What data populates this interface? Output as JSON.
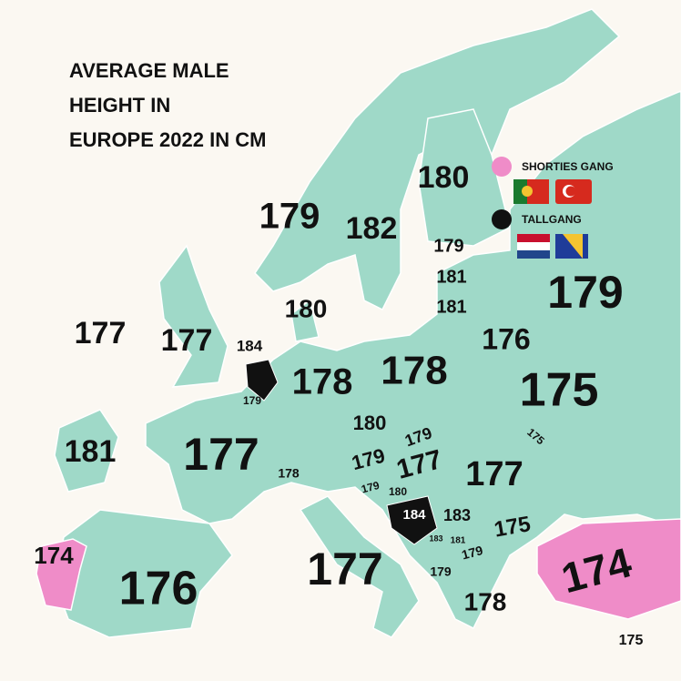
{
  "header": {
    "title_lines": [
      "AVERAGE MALE",
      "HEIGHT IN",
      "EUROPE 2022 IN CM"
    ]
  },
  "legend": [
    {
      "label": "SHORTIES GANG"
    },
    {
      "label": "TALLGANG"
    }
  ],
  "labels": [
    180,
    179,
    182,
    179,
    181,
    181,
    179,
    180,
    177,
    177,
    184,
    176,
    178,
    178,
    175,
    179,
    180,
    179,
    175,
    181,
    177,
    179,
    177,
    177,
    178,
    179,
    180,
    184,
    183,
    175,
    183,
    181,
    179,
    174,
    177,
    176,
    179,
    174,
    178,
    175
  ]
}
